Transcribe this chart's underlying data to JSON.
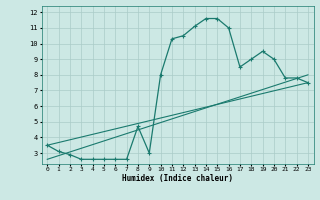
{
  "xlabel": "Humidex (Indice chaleur)",
  "ylabel": "",
  "xlim": [
    -0.5,
    23.5
  ],
  "ylim": [
    2.3,
    12.4
  ],
  "yticks": [
    3,
    4,
    5,
    6,
    7,
    8,
    9,
    10,
    11,
    12
  ],
  "xticks": [
    0,
    1,
    2,
    3,
    4,
    5,
    6,
    7,
    8,
    9,
    10,
    11,
    12,
    13,
    14,
    15,
    16,
    17,
    18,
    19,
    20,
    21,
    22,
    23
  ],
  "bg_color": "#cce8e4",
  "line_color": "#1a7a6e",
  "grid_color": "#aaccc8",
  "curve1_x": [
    0,
    1,
    2,
    3,
    4,
    5,
    6,
    7,
    8,
    9,
    10,
    11,
    12,
    13,
    14,
    15,
    16,
    17,
    18,
    19,
    20,
    21,
    22,
    23
  ],
  "curve1_y": [
    3.5,
    3.1,
    2.9,
    2.6,
    2.6,
    2.6,
    2.6,
    2.6,
    4.7,
    3.0,
    8.0,
    10.3,
    10.5,
    11.1,
    11.6,
    11.6,
    11.0,
    8.5,
    9.0,
    9.5,
    9.0,
    7.8,
    7.8,
    7.5
  ],
  "curve2_x": [
    0,
    23
  ],
  "curve2_y": [
    3.5,
    7.5
  ],
  "curve3_x": [
    0,
    23
  ],
  "curve3_y": [
    2.6,
    8.0
  ]
}
